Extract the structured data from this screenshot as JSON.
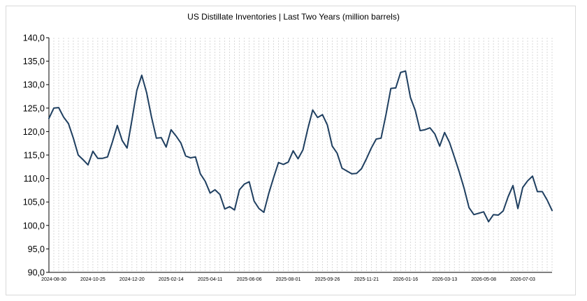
{
  "chart_data": {
    "type": "line",
    "title": "US Distillate Inventories | Last Two Years (million barrels)",
    "xlabel": "",
    "ylabel": "",
    "ylim": [
      90,
      140
    ],
    "y_ticks": [
      "140,0",
      "135,0",
      "130,0",
      "125,0",
      "120,0",
      "115,0",
      "110,0",
      "105,0",
      "100,0",
      "95,0",
      "90,0"
    ],
    "x_tick_labels": [
      "2024-08-30",
      "2024-10-25",
      "2024-12-20",
      "2025-02-14",
      "2025-04-11",
      "2025-06-06",
      "2025-08-01",
      "2025-09-26",
      "2025-11-21",
      "2026-01-16",
      "2026-03-13",
      "2026-05-08",
      "2026-07-03"
    ],
    "grid": "vertical dashed",
    "line_color": "#1f3f60",
    "series": [
      {
        "values": [
          122.8,
          125.0,
          125.1,
          123.1,
          121.7,
          118.6,
          115.0,
          114.0,
          112.9,
          115.8,
          114.3,
          114.3,
          114.6,
          117.8,
          121.3,
          118.1,
          116.5,
          122.5,
          128.8,
          132.0,
          128.3,
          123.1,
          118.6,
          118.7,
          116.7,
          120.4,
          119.1,
          117.6,
          114.8,
          114.4,
          114.6,
          111.0,
          109.4,
          106.9,
          107.6,
          106.6,
          103.5,
          104.0,
          103.3,
          107.6,
          108.8,
          109.3,
          105.2,
          103.6,
          102.8,
          106.8,
          110.2,
          113.4,
          113.0,
          113.5,
          115.9,
          114.2,
          116.1,
          120.6,
          124.6,
          123.0,
          123.6,
          121.4,
          116.9,
          115.4,
          112.2,
          111.6,
          111.0,
          111.1,
          112.1,
          114.2,
          116.5,
          118.4,
          118.6,
          123.6,
          129.2,
          129.3,
          132.6,
          132.9,
          127.3,
          124.5,
          120.2,
          120.4,
          120.8,
          119.5,
          116.9,
          119.8,
          117.7,
          114.6,
          111.4,
          107.9,
          103.8,
          102.3,
          102.6,
          102.9,
          100.8,
          102.3,
          102.2,
          103.1,
          106.1,
          108.5,
          103.6,
          108.1,
          109.5,
          110.5,
          107.2,
          107.2,
          105.4,
          103.2
        ]
      }
    ]
  }
}
